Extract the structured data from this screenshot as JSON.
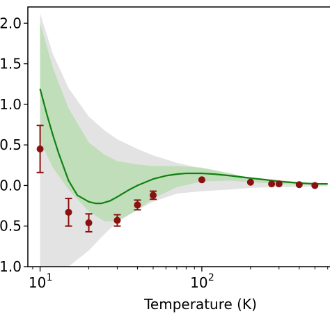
{
  "chart_data": {
    "type": "line",
    "title": "",
    "xlabel": "Temperature (K)",
    "ylabel": "",
    "xscale": "log",
    "xlim": [
      8.4,
      620
    ],
    "ylim": [
      -1.0,
      2.2
    ],
    "grid": false,
    "x_ticks": [
      {
        "value": 10,
        "label": "10",
        "exp": "1"
      },
      {
        "value": 100,
        "label": "10",
        "exp": "2"
      }
    ],
    "y_ticks": [
      {
        "value": 2.0,
        "label": "2.0"
      },
      {
        "value": 1.5,
        "label": "1.5"
      },
      {
        "value": 1.0,
        "label": "1.0"
      },
      {
        "value": 0.5,
        "label": "0.5"
      },
      {
        "value": 0.0,
        "label": "0.0"
      },
      {
        "value": -0.5,
        "label": "-0.5"
      },
      {
        "value": -1.0,
        "label": "-1.0"
      }
    ],
    "colors": {
      "grey_band": "#d9d9d9",
      "green_band": "#b5dcae",
      "fit_line": "#118011",
      "points": "#8b1010"
    },
    "grey_band": {
      "x": [
        10,
        12,
        15,
        20,
        25,
        30,
        40,
        50,
        70,
        100,
        150,
        200,
        300,
        400,
        500,
        600
      ],
      "upper": [
        2.12,
        1.62,
        1.2,
        0.85,
        0.68,
        0.57,
        0.45,
        0.37,
        0.28,
        0.21,
        0.14,
        0.1,
        0.07,
        0.04,
        0.03,
        0.03
      ],
      "lower": [
        -1.0,
        -1.0,
        -1.0,
        -0.8,
        -0.6,
        -0.45,
        -0.3,
        -0.2,
        -0.1,
        -0.07,
        -0.05,
        -0.03,
        -0.02,
        -0.02,
        -0.01,
        -0.01
      ]
    },
    "green_band": {
      "x": [
        10,
        12,
        15,
        20,
        25,
        30,
        40,
        50,
        70,
        100,
        150,
        200,
        300,
        400,
        500,
        600
      ],
      "upper": [
        2.0,
        1.45,
        0.95,
        0.53,
        0.38,
        0.3,
        0.26,
        0.24,
        0.24,
        0.22,
        0.15,
        0.09,
        0.05,
        0.03,
        0.02,
        0.02
      ],
      "lower": [
        0.55,
        0.22,
        -0.05,
        -0.32,
        -0.44,
        -0.44,
        -0.3,
        -0.16,
        -0.02,
        0.05,
        0.06,
        0.04,
        0.02,
        0.01,
        0.01,
        0.01
      ]
    },
    "fit_line": {
      "x": [
        10,
        11,
        12,
        13,
        15,
        17,
        20,
        22,
        24,
        27,
        30,
        35,
        40,
        50,
        60,
        70,
        80,
        100,
        120,
        150,
        200,
        250,
        300,
        400,
        500,
        600
      ],
      "y": [
        1.19,
        0.88,
        0.62,
        0.4,
        0.06,
        -0.12,
        -0.2,
        -0.22,
        -0.22,
        -0.19,
        -0.14,
        -0.06,
        0.0,
        0.08,
        0.12,
        0.14,
        0.15,
        0.15,
        0.14,
        0.12,
        0.09,
        0.07,
        0.05,
        0.03,
        0.02,
        0.02
      ]
    },
    "points": [
      {
        "x": 10,
        "y": 0.45,
        "err": 0.29
      },
      {
        "x": 15,
        "y": -0.33,
        "err": 0.17
      },
      {
        "x": 20,
        "y": -0.46,
        "err": 0.11
      },
      {
        "x": 30,
        "y": -0.43,
        "err": 0.07
      },
      {
        "x": 40,
        "y": -0.24,
        "err": 0.06
      },
      {
        "x": 50,
        "y": -0.12,
        "err": 0.05
      },
      {
        "x": 100,
        "y": 0.07,
        "err": 0.02
      },
      {
        "x": 200,
        "y": 0.04,
        "err": 0.015
      },
      {
        "x": 270,
        "y": 0.02,
        "err": 0.01
      },
      {
        "x": 300,
        "y": 0.02,
        "err": 0.01
      },
      {
        "x": 400,
        "y": 0.01,
        "err": 0.01
      },
      {
        "x": 500,
        "y": 0.0,
        "err": 0.01
      }
    ]
  }
}
